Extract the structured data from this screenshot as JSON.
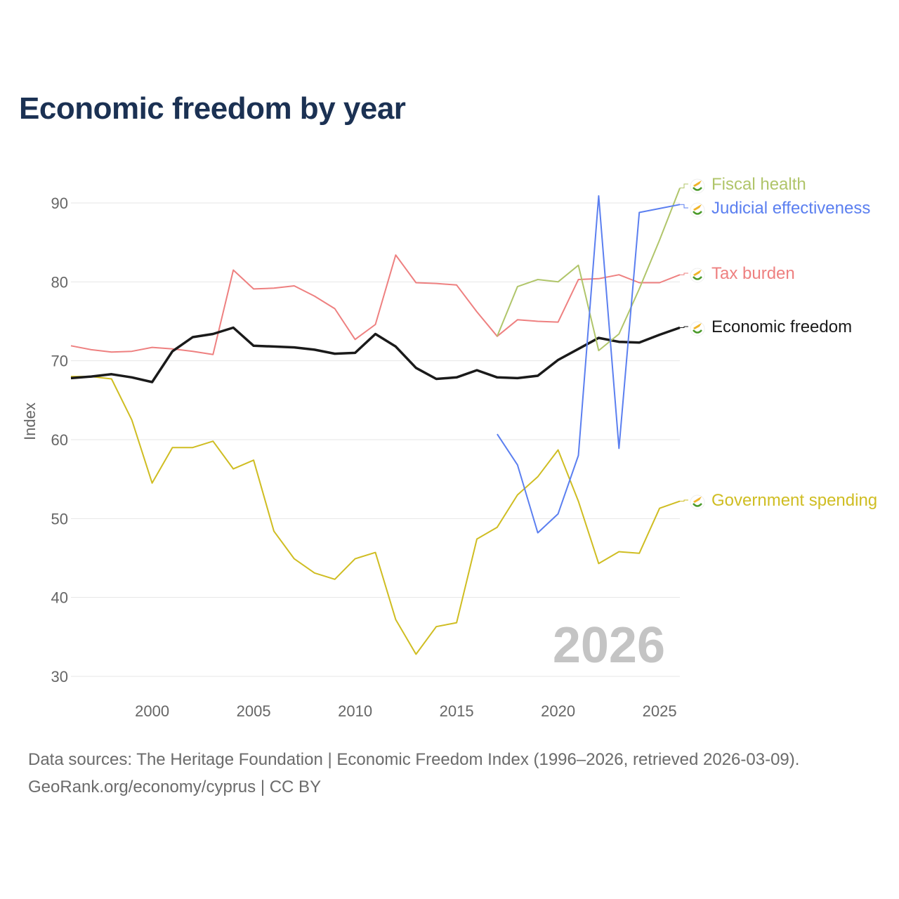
{
  "chart_data": {
    "type": "line",
    "title": "Economic freedom by year",
    "xlabel": "",
    "ylabel": "Index",
    "xlim": [
      1996,
      2026
    ],
    "ylim": [
      30,
      92
    ],
    "x_ticks": [
      2000,
      2005,
      2010,
      2015,
      2020,
      2025
    ],
    "y_ticks": [
      30,
      40,
      50,
      60,
      70,
      80,
      90
    ],
    "grid": true,
    "legend_placement": "right, end-of-line labels",
    "watermark_year": "2026",
    "series": [
      {
        "name": "Fiscal health",
        "color": "#b0c56a",
        "width": 2,
        "start": 2017,
        "values": [
          73.1,
          79.4,
          80.3,
          80.0,
          82.1,
          71.3,
          73.4,
          79.1,
          85.3,
          91.9
        ]
      },
      {
        "name": "Judicial effectiveness",
        "color": "#5b7ff0",
        "width": 2,
        "start": 2017,
        "values": [
          60.7,
          56.8,
          48.2,
          50.6,
          58.0,
          90.9,
          58.9,
          88.8,
          89.3,
          89.8
        ]
      },
      {
        "name": "Tax burden",
        "color": "#ee8080",
        "width": 2,
        "start": 1996,
        "values": [
          71.9,
          71.4,
          71.1,
          71.2,
          71.7,
          71.5,
          71.2,
          70.8,
          81.5,
          79.1,
          79.2,
          79.5,
          78.2,
          76.6,
          72.7,
          74.6,
          83.4,
          79.9,
          79.8,
          79.6,
          76.2,
          73.1,
          75.2,
          75.0,
          74.9,
          80.3,
          80.4,
          80.9,
          79.9,
          79.9,
          80.9
        ]
      },
      {
        "name": "Economic freedom",
        "color": "#1a1a1a",
        "width": 3.5,
        "start": 1996,
        "values": [
          67.8,
          68.0,
          68.3,
          67.9,
          67.3,
          71.2,
          73.0,
          73.4,
          74.2,
          71.9,
          71.8,
          71.7,
          71.4,
          70.9,
          71.0,
          73.4,
          71.8,
          69.1,
          67.7,
          67.9,
          68.8,
          67.9,
          67.8,
          68.1,
          70.1,
          71.5,
          72.9,
          72.4,
          72.3,
          73.3,
          74.2
        ]
      },
      {
        "name": "Government spending",
        "color": "#cfbd22",
        "width": 2,
        "start": 1996,
        "values": [
          68.0,
          68.0,
          67.7,
          62.5,
          54.5,
          59.0,
          59.0,
          59.8,
          56.3,
          57.4,
          48.4,
          44.9,
          43.1,
          42.3,
          44.9,
          45.7,
          37.2,
          32.8,
          36.3,
          36.8,
          47.4,
          48.9,
          53.0,
          55.3,
          58.7,
          52.2,
          44.3,
          45.8,
          45.6,
          51.3,
          52.2
        ]
      }
    ]
  },
  "footer": {
    "line1": "Data sources: The Heritage Foundation | Economic Freedom Index (1996–2026, retrieved 2026-03-09).",
    "line2": "GeoRank.org/economy/cyprus | CC BY"
  }
}
